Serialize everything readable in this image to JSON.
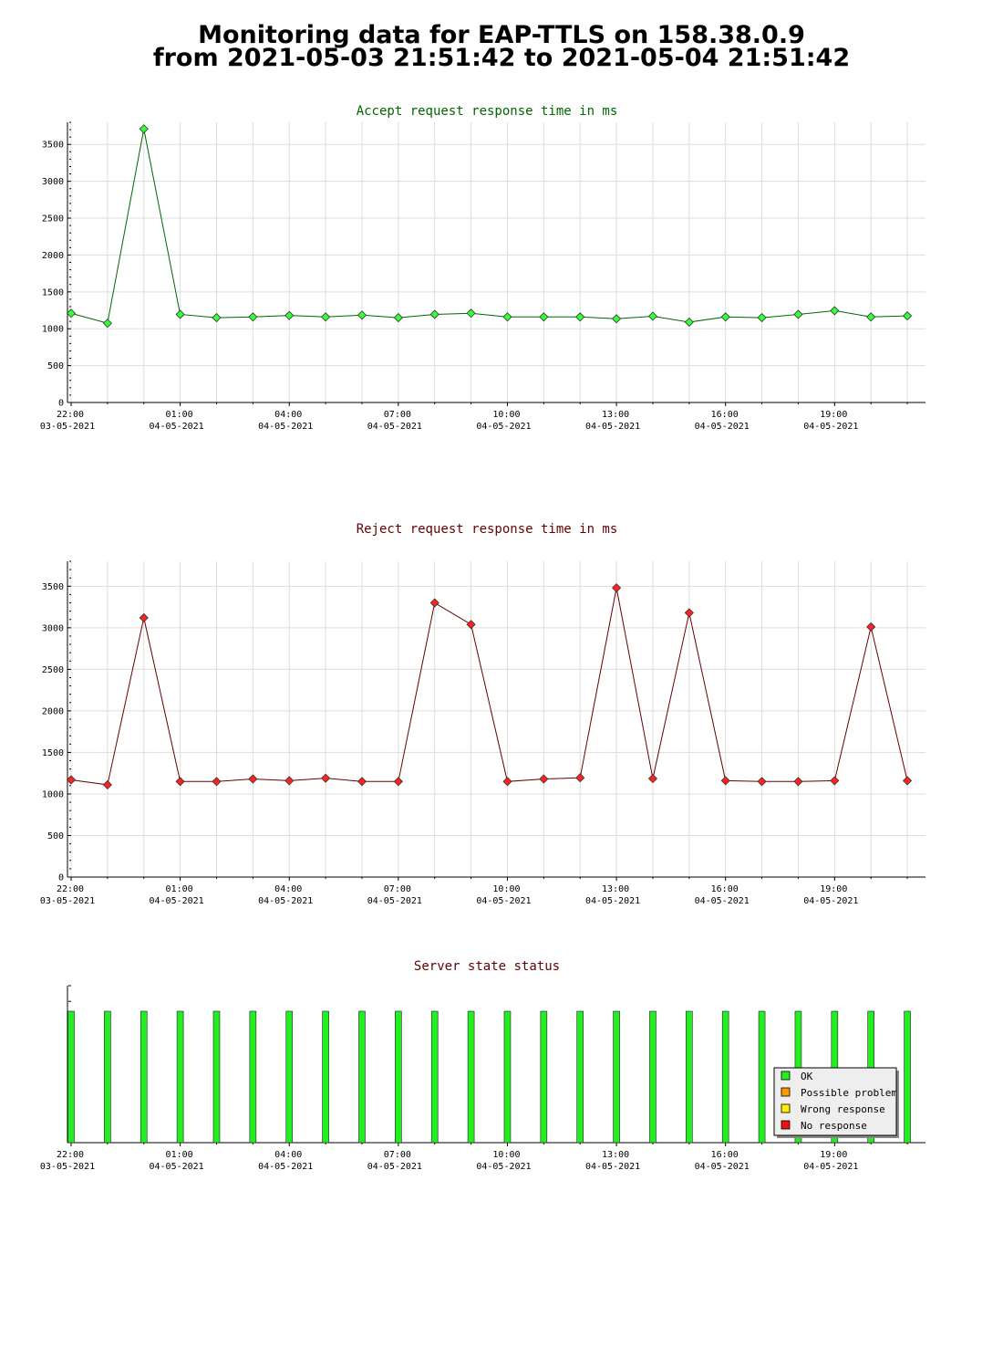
{
  "header": {
    "title_line1": "Monitoring data for EAP-TTLS on 158.38.0.9",
    "title_line2": "from 2021-05-03 21:51:42 to 2021-05-04 21:51:42"
  },
  "chart_data": [
    {
      "type": "line",
      "title": "Accept request response time in ms",
      "title_color": "#006600",
      "line_color": "#006600",
      "marker_color": "#33ff33",
      "marker": "diamond",
      "grid": true,
      "ylim": [
        0,
        3800
      ],
      "y_ticks": [
        "0",
        "500",
        "1000",
        "1500",
        "2000",
        "2500",
        "3000",
        "3500"
      ],
      "xlim_hours": [
        0,
        23.5
      ],
      "x_ticks": [
        {
          "time": "22:00",
          "date": "03-05-2021"
        },
        {
          "time": "01:00",
          "date": "04-05-2021"
        },
        {
          "time": "04:00",
          "date": "04-05-2021"
        },
        {
          "time": "07:00",
          "date": "04-05-2021"
        },
        {
          "time": "10:00",
          "date": "04-05-2021"
        },
        {
          "time": "13:00",
          "date": "04-05-2021"
        },
        {
          "time": "16:00",
          "date": "04-05-2021"
        },
        {
          "time": "19:00",
          "date": "04-05-2021"
        }
      ],
      "x": [
        "22:00",
        "23:00",
        "00:00",
        "01:00",
        "02:00",
        "03:00",
        "04:00",
        "05:00",
        "06:00",
        "07:00",
        "08:00",
        "09:00",
        "10:00",
        "11:00",
        "12:00",
        "13:00",
        "14:00",
        "15:00",
        "16:00",
        "17:00",
        "18:00",
        "19:00",
        "20:00",
        "21:00"
      ],
      "values": [
        1210,
        1075,
        3710,
        1195,
        1150,
        1160,
        1180,
        1160,
        1185,
        1150,
        1195,
        1210,
        1160,
        1160,
        1160,
        1135,
        1170,
        1090,
        1160,
        1150,
        1195,
        1245,
        1160,
        1175
      ]
    },
    {
      "type": "line",
      "title": "Reject request response time in ms",
      "title_color": "#660000",
      "line_color": "#660000",
      "marker_color": "#ff2222",
      "marker": "diamond",
      "grid": true,
      "ylim": [
        0,
        3800
      ],
      "y_ticks": [
        "0",
        "500",
        "1000",
        "1500",
        "2000",
        "2500",
        "3000",
        "3500"
      ],
      "xlim_hours": [
        0,
        23.5
      ],
      "x_ticks": [
        {
          "time": "22:00",
          "date": "03-05-2021"
        },
        {
          "time": "01:00",
          "date": "04-05-2021"
        },
        {
          "time": "04:00",
          "date": "04-05-2021"
        },
        {
          "time": "07:00",
          "date": "04-05-2021"
        },
        {
          "time": "10:00",
          "date": "04-05-2021"
        },
        {
          "time": "13:00",
          "date": "04-05-2021"
        },
        {
          "time": "16:00",
          "date": "04-05-2021"
        },
        {
          "time": "19:00",
          "date": "04-05-2021"
        }
      ],
      "x": [
        "22:00",
        "23:00",
        "00:00",
        "01:00",
        "02:00",
        "03:00",
        "04:00",
        "05:00",
        "06:00",
        "07:00",
        "08:00",
        "09:00",
        "10:00",
        "11:00",
        "12:00",
        "13:00",
        "14:00",
        "15:00",
        "16:00",
        "17:00",
        "18:00",
        "19:00",
        "20:00",
        "21:00"
      ],
      "values": [
        1170,
        1110,
        3120,
        1150,
        1150,
        1180,
        1160,
        1190,
        1150,
        1150,
        3300,
        3040,
        1150,
        1180,
        1195,
        3480,
        1185,
        3180,
        1160,
        1150,
        1150,
        1160,
        3010,
        1160
      ]
    },
    {
      "type": "bar",
      "title": "Server state status",
      "title_color": "#660000",
      "grid": false,
      "xlim_hours": [
        0,
        23.5
      ],
      "x_ticks": [
        {
          "time": "22:00",
          "date": "03-05-2021"
        },
        {
          "time": "01:00",
          "date": "04-05-2021"
        },
        {
          "time": "04:00",
          "date": "04-05-2021"
        },
        {
          "time": "07:00",
          "date": "04-05-2021"
        },
        {
          "time": "10:00",
          "date": "04-05-2021"
        },
        {
          "time": "13:00",
          "date": "04-05-2021"
        },
        {
          "time": "16:00",
          "date": "04-05-2021"
        },
        {
          "time": "19:00",
          "date": "04-05-2021"
        }
      ],
      "x": [
        "22:00",
        "23:00",
        "00:00",
        "01:00",
        "02:00",
        "03:00",
        "04:00",
        "05:00",
        "06:00",
        "07:00",
        "08:00",
        "09:00",
        "10:00",
        "11:00",
        "12:00",
        "13:00",
        "14:00",
        "15:00",
        "16:00",
        "17:00",
        "18:00",
        "19:00",
        "20:00",
        "21:00"
      ],
      "states": [
        "OK",
        "OK",
        "OK",
        "OK",
        "OK",
        "OK",
        "OK",
        "OK",
        "OK",
        "OK",
        "OK",
        "OK",
        "OK",
        "OK",
        "OK",
        "OK",
        "OK",
        "OK",
        "OK",
        "OK",
        "OK",
        "OK",
        "OK",
        "OK"
      ],
      "legend_placement": "bottom-right",
      "legend": [
        {
          "label": "OK",
          "color": "#22ee22"
        },
        {
          "label": "Possible problem",
          "color": "#ff9900"
        },
        {
          "label": "Wrong response",
          "color": "#ffee00"
        },
        {
          "label": "No response",
          "color": "#ee1111"
        }
      ]
    }
  ]
}
